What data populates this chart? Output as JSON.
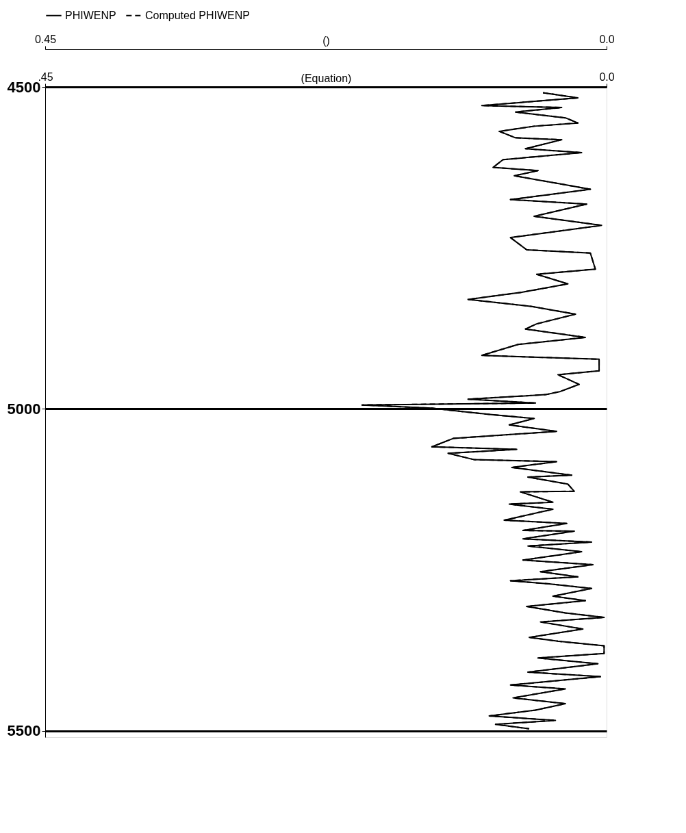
{
  "chart_data": {
    "type": "line",
    "orientation": "horizontal",
    "xlabel": "()",
    "x2label": "(Equation)",
    "xlim": [
      0.45,
      0.0
    ],
    "xticks": [
      0.45,
      {
        "value": 0.0,
        "label": "0.0"
      }
    ],
    "x2lim": [
      0.45,
      0.0
    ],
    "x2ticks": [
      {
        "value": 0.45,
        "label": ".45"
      },
      {
        "value": 0.0,
        "label": "0.0"
      }
    ],
    "ylim": [
      5510,
      4500
    ],
    "yticks": [
      4500,
      5000,
      5500
    ],
    "grid": "y",
    "legend": "top",
    "x": [
      4509,
      4517,
      4529,
      4532,
      4539,
      4548,
      4556,
      4561,
      4569,
      4579,
      4582,
      4596,
      4602,
      4613,
      4625,
      4630,
      4638,
      4651,
      4659,
      4675,
      4682,
      4701,
      4715,
      4734,
      4753,
      4758,
      4783,
      4791,
      4806,
      4819,
      4830,
      4841,
      4853,
      4868,
      4876,
      4889,
      4900,
      4917,
      4923,
      4941,
      4947,
      4962,
      4973,
      4978,
      4985,
      4991,
      4994,
      4999,
      5004,
      5009,
      5015,
      5025,
      5035,
      5046,
      5059,
      5063,
      5069,
      5079,
      5082,
      5091,
      5103,
      5106,
      5117,
      5128,
      5129,
      5145,
      5148,
      5156,
      5173,
      5178,
      5189,
      5190,
      5202,
      5207,
      5213,
      5222,
      5235,
      5242,
      5253,
      5261,
      5267,
      5272,
      5279,
      5291,
      5298,
      5307,
      5317,
      5324,
      5331,
      5342,
      5355,
      5361,
      5368,
      5380,
      5387,
      5396,
      5409,
      5416,
      5429,
      5435,
      5449,
      5458,
      5468,
      5477,
      5484,
      5490,
      5497
    ],
    "series": [
      {
        "name": "PHIWENP",
        "color": "#000000",
        "line_style": "solid",
        "values": [
          0.051,
          0.023,
          0.1,
          0.036,
          0.073,
          0.033,
          0.023,
          0.058,
          0.086,
          0.073,
          0.036,
          0.065,
          0.02,
          0.083,
          0.091,
          0.055,
          0.074,
          0.036,
          0.013,
          0.077,
          0.016,
          0.058,
          0.004,
          0.077,
          0.064,
          0.013,
          0.009,
          0.056,
          0.031,
          0.068,
          0.111,
          0.06,
          0.025,
          0.056,
          0.065,
          0.017,
          0.071,
          0.1,
          0.006,
          0.006,
          0.039,
          0.022,
          0.037,
          0.049,
          0.111,
          0.057,
          0.196,
          0.14,
          0.117,
          0.092,
          0.058,
          0.078,
          0.04,
          0.123,
          0.14,
          0.072,
          0.127,
          0.106,
          0.04,
          0.076,
          0.028,
          0.063,
          0.031,
          0.026,
          0.069,
          0.043,
          0.078,
          0.043,
          0.082,
          0.032,
          0.067,
          0.026,
          0.067,
          0.012,
          0.063,
          0.02,
          0.067,
          0.011,
          0.053,
          0.023,
          0.077,
          0.045,
          0.012,
          0.043,
          0.017,
          0.064,
          0.033,
          0.002,
          0.053,
          0.019,
          0.062,
          0.039,
          0.002,
          0.002,
          0.055,
          0.007,
          0.063,
          0.005,
          0.077,
          0.033,
          0.075,
          0.033,
          0.057,
          0.094,
          0.041,
          0.089,
          0.062
        ]
      },
      {
        "name": "Computed PHIWENP",
        "color": "#000000",
        "line_style": "dashed",
        "axis": "x2",
        "values": [
          0.051,
          0.023,
          0.1,
          0.036,
          0.073,
          0.033,
          0.023,
          0.058,
          0.086,
          0.073,
          0.036,
          0.065,
          0.02,
          0.083,
          0.091,
          0.055,
          0.074,
          0.036,
          0.013,
          0.077,
          0.016,
          0.058,
          0.004,
          0.077,
          0.064,
          0.013,
          0.009,
          0.056,
          0.031,
          0.068,
          0.111,
          0.06,
          0.025,
          0.056,
          0.065,
          0.017,
          0.071,
          0.1,
          0.006,
          0.006,
          0.039,
          0.022,
          0.037,
          0.049,
          0.111,
          0.057,
          0.196,
          0.14,
          0.117,
          0.092,
          0.058,
          0.078,
          0.04,
          0.123,
          0.14,
          0.072,
          0.127,
          0.106,
          0.04,
          0.076,
          0.028,
          0.063,
          0.031,
          0.026,
          0.069,
          0.043,
          0.078,
          0.043,
          0.082,
          0.032,
          0.067,
          0.026,
          0.067,
          0.012,
          0.063,
          0.02,
          0.067,
          0.011,
          0.053,
          0.023,
          0.077,
          0.045,
          0.012,
          0.043,
          0.017,
          0.064,
          0.033,
          0.002,
          0.053,
          0.019,
          0.062,
          0.039,
          0.002,
          0.002,
          0.055,
          0.007,
          0.063,
          0.005,
          0.077,
          0.033,
          0.075,
          0.033,
          0.057,
          0.094,
          0.041,
          0.089,
          0.062
        ]
      }
    ]
  }
}
